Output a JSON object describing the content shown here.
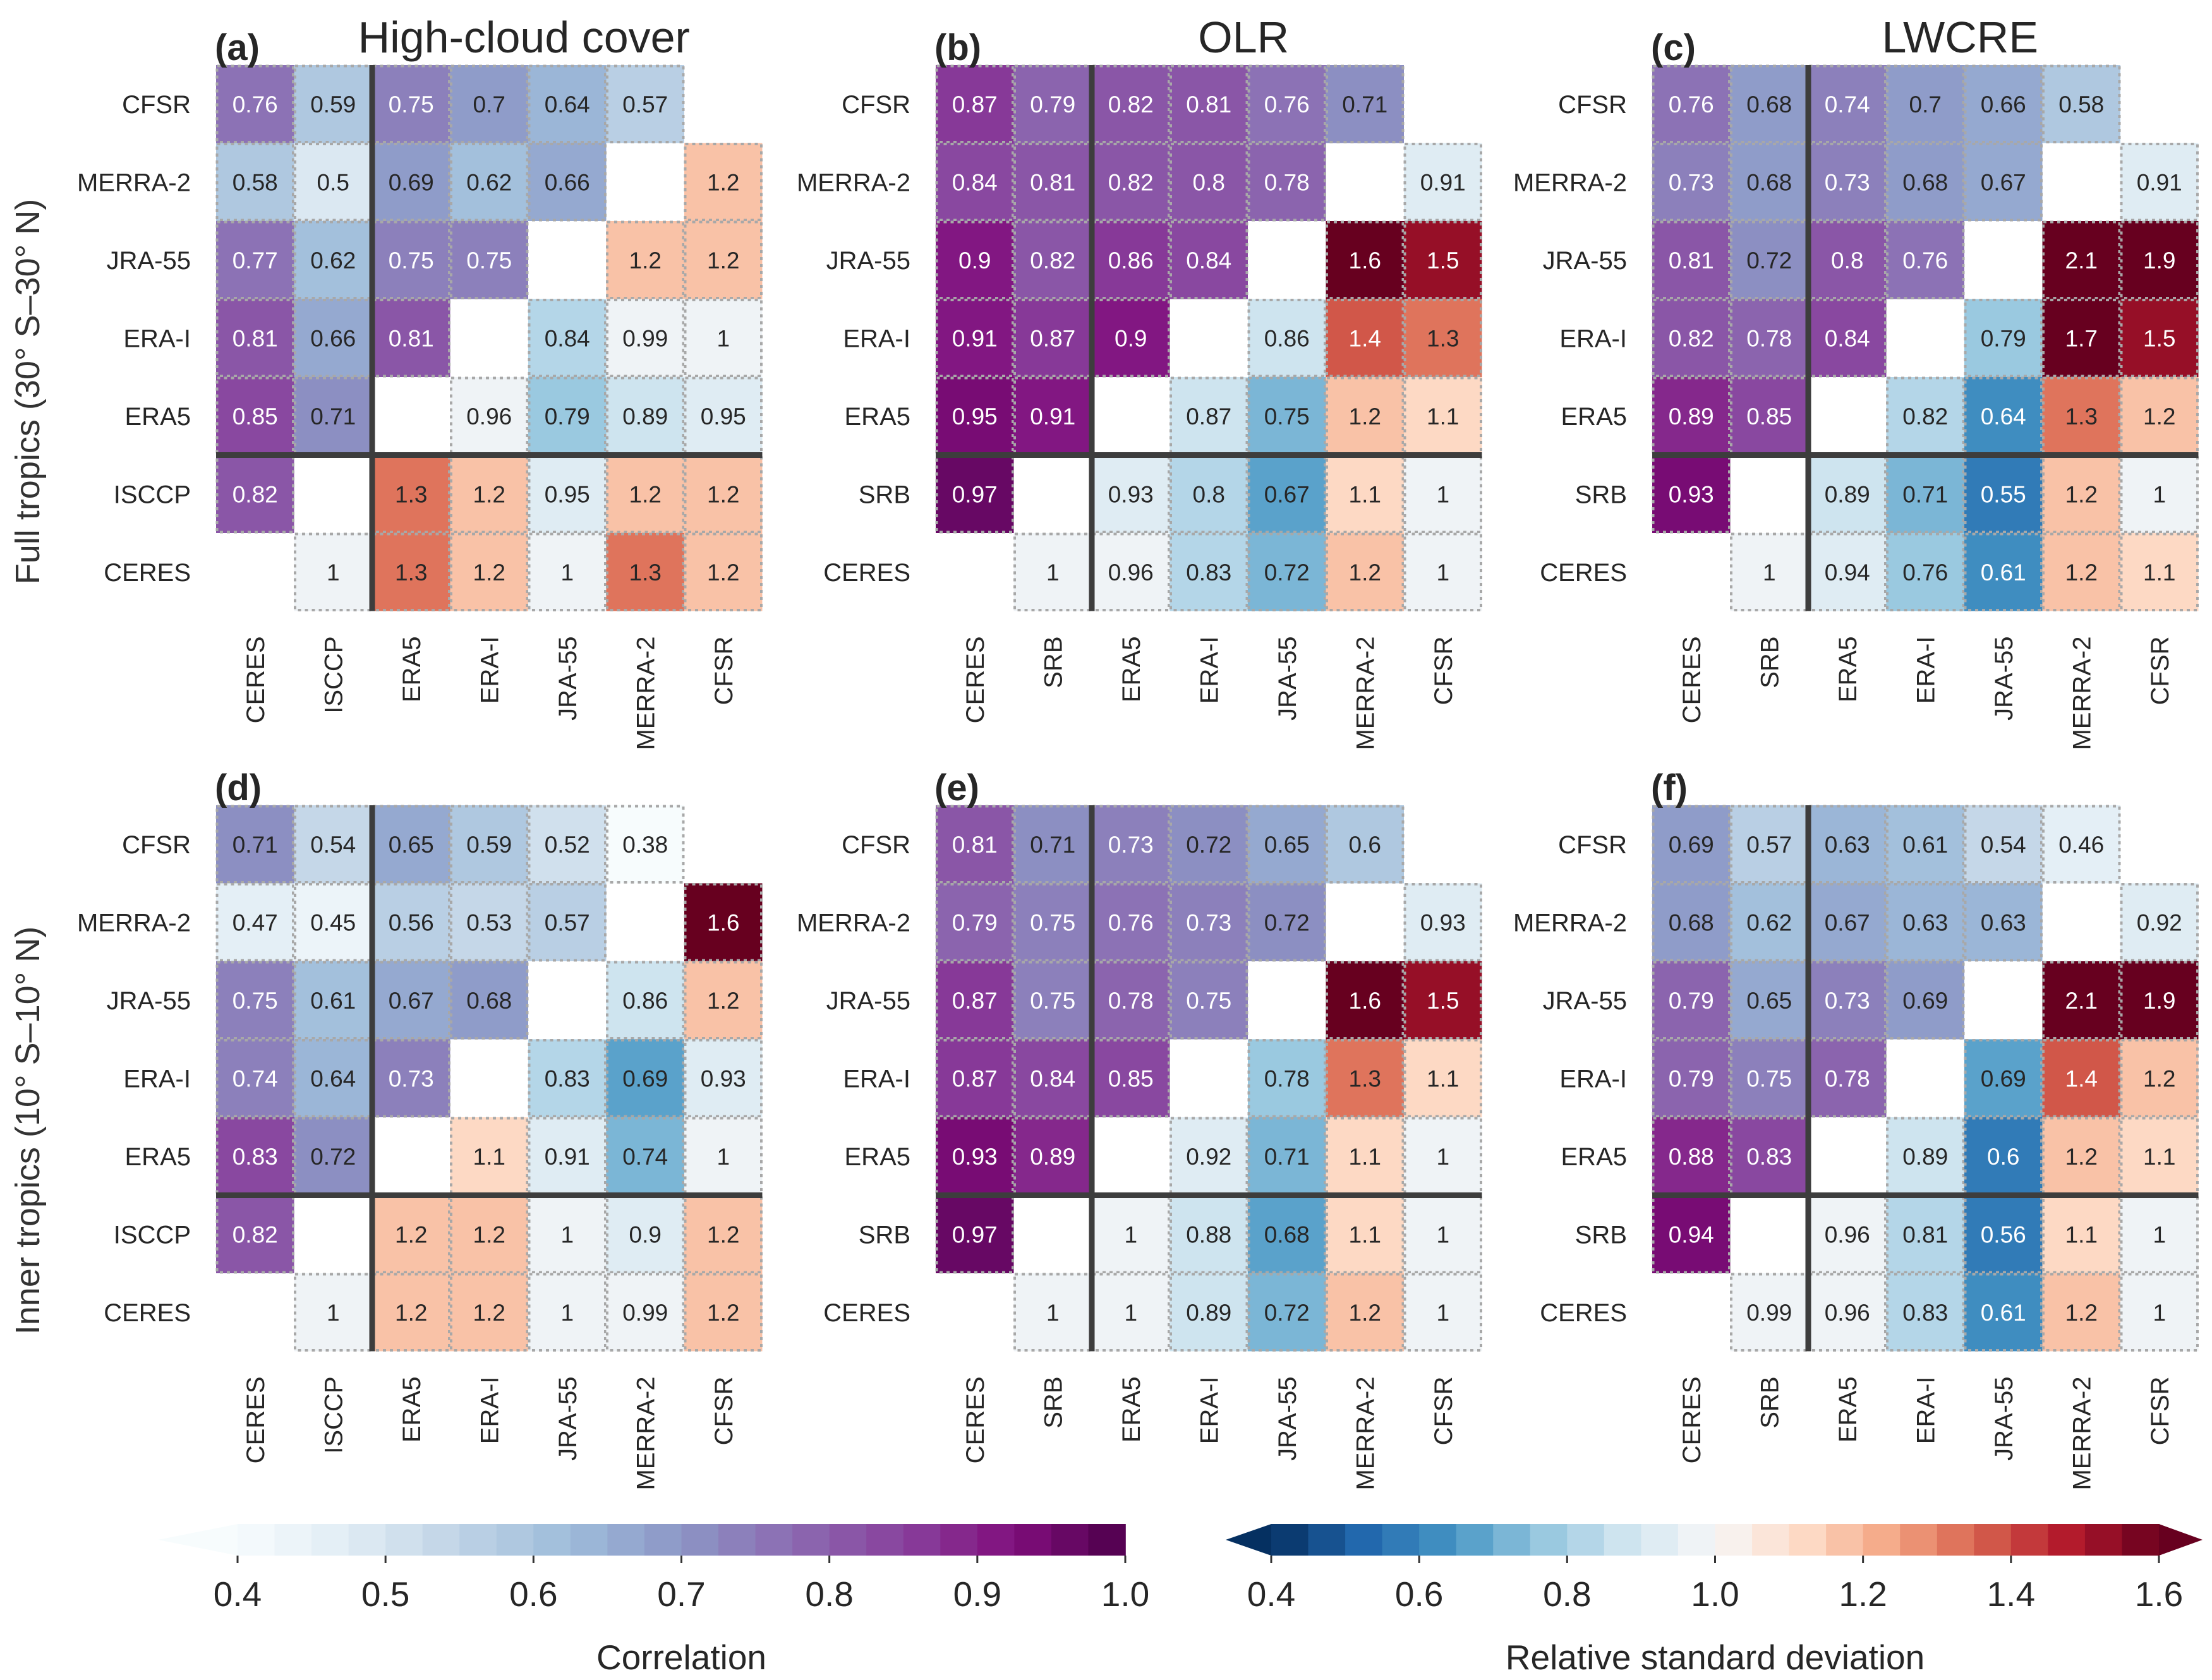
{
  "row_labels_text": [
    "Full tropics (30° S–30° N)",
    "Inner tropics (10° S–10° N)"
  ],
  "chart_data": [
    {
      "panel": "(a)",
      "title": "High-cloud cover",
      "type": "heatmap",
      "rows": [
        "CFSR",
        "MERRA-2",
        "JRA-55",
        "ERA-I",
        "ERA5",
        "ISCCP",
        "CERES"
      ],
      "cols": [
        "CERES",
        "ISCCP",
        "ERA5",
        "ERA-I",
        "JRA-55",
        "MERRA-2",
        "CFSR"
      ],
      "corr": [
        [
          0.76,
          0.59,
          0.75,
          0.7,
          0.64,
          0.57
        ],
        [
          0.58,
          0.5,
          0.69,
          0.62,
          0.66
        ],
        [
          0.77,
          0.62,
          0.75,
          0.75
        ],
        [
          0.81,
          0.66,
          0.81
        ],
        [
          0.85,
          0.71
        ],
        [
          0.82
        ],
        []
      ],
      "rsd": [
        [],
        [
          1.2
        ],
        [
          1.2,
          1.2
        ],
        [
          0.84,
          0.99,
          1
        ],
        [
          0.96,
          0.79,
          0.89,
          0.95
        ],
        [
          1.3,
          1.2,
          0.95,
          1.2,
          1.2
        ],
        [
          1,
          1.3,
          1.2,
          1,
          1.3,
          1.2
        ]
      ]
    },
    {
      "panel": "(b)",
      "title": "OLR",
      "type": "heatmap",
      "rows": [
        "CFSR",
        "MERRA-2",
        "JRA-55",
        "ERA-I",
        "ERA5",
        "SRB",
        "CERES"
      ],
      "cols": [
        "CERES",
        "SRB",
        "ERA5",
        "ERA-I",
        "JRA-55",
        "MERRA-2",
        "CFSR"
      ],
      "corr": [
        [
          0.87,
          0.79,
          0.82,
          0.81,
          0.76,
          0.71
        ],
        [
          0.84,
          0.81,
          0.82,
          0.8,
          0.78
        ],
        [
          0.9,
          0.82,
          0.86,
          0.84
        ],
        [
          0.91,
          0.87,
          0.9
        ],
        [
          0.95,
          0.91
        ],
        [
          0.97
        ],
        []
      ],
      "rsd": [
        [],
        [
          0.91
        ],
        [
          1.6,
          1.5
        ],
        [
          0.86,
          1.4,
          1.3
        ],
        [
          0.87,
          0.75,
          1.2,
          1.1
        ],
        [
          0.93,
          0.8,
          0.67,
          1.1,
          1
        ],
        [
          1,
          0.96,
          0.83,
          0.72,
          1.2,
          1
        ]
      ]
    },
    {
      "panel": "(c)",
      "title": "LWCRE",
      "type": "heatmap",
      "rows": [
        "CFSR",
        "MERRA-2",
        "JRA-55",
        "ERA-I",
        "ERA5",
        "SRB",
        "CERES"
      ],
      "cols": [
        "CERES",
        "SRB",
        "ERA5",
        "ERA-I",
        "JRA-55",
        "MERRA-2",
        "CFSR"
      ],
      "corr": [
        [
          0.76,
          0.68,
          0.74,
          0.7,
          0.66,
          0.58
        ],
        [
          0.73,
          0.68,
          0.73,
          0.68,
          0.67
        ],
        [
          0.81,
          0.72,
          0.8,
          0.76
        ],
        [
          0.82,
          0.78,
          0.84
        ],
        [
          0.89,
          0.85
        ],
        [
          0.93
        ],
        []
      ],
      "rsd": [
        [],
        [
          0.91
        ],
        [
          2.1,
          1.9
        ],
        [
          0.79,
          1.7,
          1.5
        ],
        [
          0.82,
          0.64,
          1.3,
          1.2
        ],
        [
          0.89,
          0.71,
          0.55,
          1.2,
          1
        ],
        [
          1,
          0.94,
          0.76,
          0.61,
          1.2,
          1.1
        ]
      ]
    },
    {
      "panel": "(d)",
      "title": "",
      "type": "heatmap",
      "rows": [
        "CFSR",
        "MERRA-2",
        "JRA-55",
        "ERA-I",
        "ERA5",
        "ISCCP",
        "CERES"
      ],
      "cols": [
        "CERES",
        "ISCCP",
        "ERA5",
        "ERA-I",
        "JRA-55",
        "MERRA-2",
        "CFSR"
      ],
      "corr": [
        [
          0.71,
          0.54,
          0.65,
          0.59,
          0.52,
          0.38
        ],
        [
          0.47,
          0.45,
          0.56,
          0.53,
          0.57
        ],
        [
          0.75,
          0.61,
          0.67,
          0.68
        ],
        [
          0.74,
          0.64,
          0.73
        ],
        [
          0.83,
          0.72
        ],
        [
          0.82
        ],
        []
      ],
      "rsd": [
        [],
        [
          1.6
        ],
        [
          0.86,
          1.2
        ],
        [
          0.83,
          0.69,
          0.93
        ],
        [
          1.1,
          0.91,
          0.74,
          1
        ],
        [
          1.2,
          1.2,
          1,
          0.9,
          1.2
        ],
        [
          1,
          1.2,
          1.2,
          1,
          0.99,
          1.2
        ]
      ]
    },
    {
      "panel": "(e)",
      "title": "",
      "type": "heatmap",
      "rows": [
        "CFSR",
        "MERRA-2",
        "JRA-55",
        "ERA-I",
        "ERA5",
        "SRB",
        "CERES"
      ],
      "cols": [
        "CERES",
        "SRB",
        "ERA5",
        "ERA-I",
        "JRA-55",
        "MERRA-2",
        "CFSR"
      ],
      "corr": [
        [
          0.81,
          0.71,
          0.73,
          0.72,
          0.65,
          0.6
        ],
        [
          0.79,
          0.75,
          0.76,
          0.73,
          0.72
        ],
        [
          0.87,
          0.75,
          0.78,
          0.75
        ],
        [
          0.87,
          0.84,
          0.85
        ],
        [
          0.93,
          0.89
        ],
        [
          0.97
        ],
        []
      ],
      "rsd": [
        [],
        [
          0.93
        ],
        [
          1.6,
          1.5
        ],
        [
          0.78,
          1.3,
          1.1
        ],
        [
          0.92,
          0.71,
          1.1,
          1
        ],
        [
          1,
          0.88,
          0.68,
          1.1,
          1
        ],
        [
          1,
          1,
          0.89,
          0.72,
          1.2,
          1
        ]
      ]
    },
    {
      "panel": "(f)",
      "title": "",
      "type": "heatmap",
      "rows": [
        "CFSR",
        "MERRA-2",
        "JRA-55",
        "ERA-I",
        "ERA5",
        "SRB",
        "CERES"
      ],
      "cols": [
        "CERES",
        "SRB",
        "ERA5",
        "ERA-I",
        "JRA-55",
        "MERRA-2",
        "CFSR"
      ],
      "corr": [
        [
          0.69,
          0.57,
          0.63,
          0.61,
          0.54,
          0.46
        ],
        [
          0.68,
          0.62,
          0.67,
          0.63,
          0.63
        ],
        [
          0.79,
          0.65,
          0.73,
          0.69
        ],
        [
          0.79,
          0.75,
          0.78
        ],
        [
          0.88,
          0.83
        ],
        [
          0.94
        ],
        []
      ],
      "rsd": [
        [],
        [
          0.92
        ],
        [
          2.1,
          1.9
        ],
        [
          0.69,
          1.4,
          1.2
        ],
        [
          0.89,
          0.6,
          1.2,
          1.1
        ],
        [
          0.96,
          0.81,
          0.56,
          1.1,
          1
        ],
        [
          0.99,
          0.96,
          0.83,
          0.61,
          1.2,
          1
        ]
      ]
    }
  ],
  "colorbars": [
    {
      "label": "Correlation",
      "min": 0.4,
      "max": 1.0,
      "ticks": [
        "0.4",
        "0.5",
        "0.6",
        "0.7",
        "0.8",
        "0.9",
        "1.0"
      ],
      "colormap": "BuPu",
      "extend": "min"
    },
    {
      "label": "Relative standard deviation",
      "min": 0.4,
      "max": 1.6,
      "ticks": [
        "0.4",
        "0.6",
        "0.8",
        "1.0",
        "1.2",
        "1.4",
        "1.6"
      ],
      "colormap": "RdBu_r",
      "extend": "both"
    }
  ],
  "colors": {
    "text_dark": "#262626",
    "text_light": "#ffffff",
    "separator": "#3d3d3d",
    "cell_border": "#a8a8a8"
  }
}
